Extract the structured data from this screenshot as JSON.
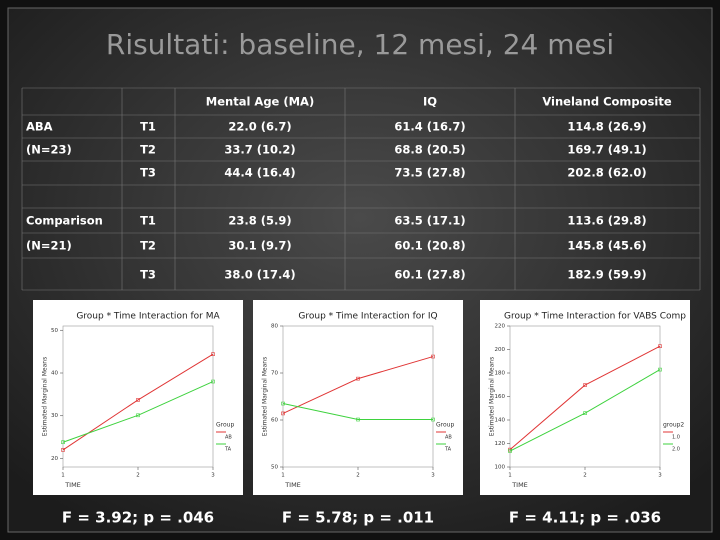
{
  "title": "Risultati: baseline, 12 mesi, 24 mesi",
  "table": {
    "columns": [
      "Mental Age (MA)",
      "IQ",
      "Vineland Composite"
    ],
    "groups": [
      {
        "label": [
          "ABA",
          "(N=23)"
        ],
        "rows": [
          {
            "time": "T1",
            "cells": [
              "22.0 (6.7)",
              "61.4 (16.7)",
              "114.8 (26.9)"
            ]
          },
          {
            "time": "T2",
            "cells": [
              "33.7 (10.2)",
              "68.8 (20.5)",
              "169.7 (49.1)"
            ]
          },
          {
            "time": "T3",
            "cells": [
              "44.4 (16.4)",
              "73.5 (27.8)",
              "202.8 (62.0)"
            ]
          }
        ]
      },
      {
        "label": [
          "Comparison",
          "(N=21)"
        ],
        "rows": [
          {
            "time": "T1",
            "cells": [
              "23.8 (5.9)",
              "63.5 (17.1)",
              "113.6 (29.8)"
            ]
          },
          {
            "time": "T2",
            "cells": [
              "30.1 (9.7)",
              "60.1 (20.8)",
              "145.8 (45.6)"
            ]
          },
          {
            "time": "T3",
            "cells": [
              "38.0 (17.4)",
              "60.1 (27.8)",
              "182.9 (59.9)"
            ]
          }
        ]
      }
    ]
  },
  "charts": [
    {
      "type": "line",
      "title": "Group * Time Interaction for MA",
      "y_label": "Estimated Marginal Means",
      "x_label": "TIME",
      "x": [
        1,
        2,
        3
      ],
      "xlim": [
        1,
        3
      ],
      "xticks": [
        1,
        2,
        3
      ],
      "ylim": [
        18,
        51
      ],
      "yticks": [
        20,
        30,
        40,
        50
      ],
      "legend_title": "Group",
      "series": [
        {
          "name": "AB",
          "color": "#e03535",
          "values": [
            22.0,
            33.7,
            44.4
          ]
        },
        {
          "name": "TA",
          "color": "#3ed23e",
          "values": [
            23.8,
            30.1,
            38.0
          ]
        }
      ],
      "caption": "F = 3.92; p = .046"
    },
    {
      "type": "line",
      "title": "Group * Time Interaction for IQ",
      "y_label": "Estimated Marginal Means",
      "x_label": "TIME",
      "x": [
        1,
        2,
        3
      ],
      "xlim": [
        1,
        3
      ],
      "xticks": [
        1,
        2,
        3
      ],
      "ylim": [
        50,
        80
      ],
      "yticks": [
        50,
        60,
        70,
        80
      ],
      "legend_title": "Group",
      "series": [
        {
          "name": "AB",
          "color": "#e03535",
          "values": [
            61.4,
            68.8,
            73.5
          ]
        },
        {
          "name": "TA",
          "color": "#3ed23e",
          "values": [
            63.5,
            60.1,
            60.1
          ]
        }
      ],
      "caption": "F = 5.78; p = .011"
    },
    {
      "type": "line",
      "title": "Group * Time Interaction for VABS Comp",
      "y_label": "Estimated Marginal Means",
      "x_label": "TIME",
      "x": [
        1,
        2,
        3
      ],
      "xlim": [
        1,
        3
      ],
      "xticks": [
        1,
        2,
        3
      ],
      "ylim": [
        100,
        220
      ],
      "yticks": [
        100,
        120,
        140,
        160,
        180,
        200,
        220
      ],
      "legend_title": "group2",
      "series": [
        {
          "name": "1.0",
          "color": "#e03535",
          "values": [
            114.8,
            169.7,
            202.8
          ]
        },
        {
          "name": "2.0",
          "color": "#3ed23e",
          "values": [
            113.6,
            145.8,
            182.9
          ]
        }
      ],
      "caption": "F = 4.11; p = .036"
    }
  ]
}
